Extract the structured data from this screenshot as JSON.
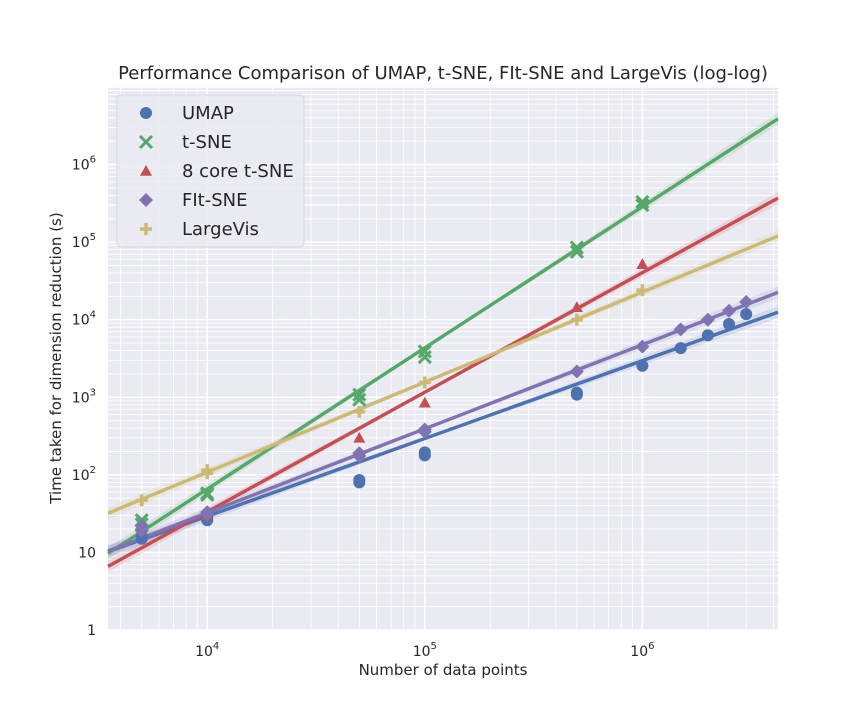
{
  "chart_data": {
    "type": "scatter",
    "title": "Performance Comparison of UMAP, t-SNE, FIt-SNE and LargeVis (log-log)",
    "xlabel": "Number of data points",
    "ylabel": "Time taken for dimension reduction (s)",
    "xscale": "log",
    "yscale": "log",
    "xlim": [
      3500,
      4200000
    ],
    "ylim": [
      1,
      10000000
    ],
    "grid": true,
    "legend_position": "top-left",
    "x_ticks": [
      {
        "value": 10000,
        "base": "10",
        "exp": "4"
      },
      {
        "value": 100000,
        "base": "10",
        "exp": "5"
      },
      {
        "value": 1000000,
        "base": "10",
        "exp": "6"
      }
    ],
    "y_ticks": [
      {
        "value": 1,
        "base": "1",
        "exp": ""
      },
      {
        "value": 10,
        "base": "10",
        "exp": ""
      },
      {
        "value": 100,
        "base": "10",
        "exp": "2"
      },
      {
        "value": 1000,
        "base": "10",
        "exp": "3"
      },
      {
        "value": 10000,
        "base": "10",
        "exp": "4"
      },
      {
        "value": 100000,
        "base": "10",
        "exp": "5"
      },
      {
        "value": 1000000,
        "base": "10",
        "exp": "6"
      }
    ],
    "series": [
      {
        "name": "UMAP",
        "color": "#4c72b0",
        "marker": "circle",
        "points": [
          [
            5000,
            15
          ],
          [
            5000,
            16
          ],
          [
            10000,
            26
          ],
          [
            10000,
            28
          ],
          [
            50000,
            80
          ],
          [
            50000,
            86
          ],
          [
            100000,
            178
          ],
          [
            100000,
            195
          ],
          [
            500000,
            1080
          ],
          [
            500000,
            1150
          ],
          [
            1000000,
            2550
          ],
          [
            1500000,
            4300
          ],
          [
            2000000,
            6300
          ],
          [
            2500000,
            8800
          ],
          [
            3000000,
            11800
          ]
        ],
        "fit": {
          "x0": 3500,
          "y0": 10.2,
          "x1": 4200000,
          "y1": 12500
        }
      },
      {
        "name": "t-SNE",
        "color": "#55a868",
        "marker": "x",
        "points": [
          [
            5000,
            23
          ],
          [
            5000,
            26
          ],
          [
            10000,
            55
          ],
          [
            10000,
            58
          ],
          [
            50000,
            930
          ],
          [
            50000,
            1080
          ],
          [
            100000,
            3300
          ],
          [
            100000,
            3900
          ],
          [
            500000,
            75000
          ],
          [
            500000,
            85000
          ],
          [
            1000000,
            300000
          ],
          [
            1000000,
            330000
          ]
        ],
        "fit": {
          "x0": 3500,
          "y0": 9.7,
          "x1": 4200000,
          "y1": 3900000
        }
      },
      {
        "name": "8 core t-SNE",
        "color": "#c44e52",
        "marker": "triangle",
        "points": [
          [
            5000,
            22
          ],
          [
            10000,
            30
          ],
          [
            50000,
            300
          ],
          [
            100000,
            850
          ],
          [
            500000,
            14500
          ],
          [
            1000000,
            52000
          ]
        ],
        "fit": {
          "x0": 3500,
          "y0": 6.6,
          "x1": 4200000,
          "y1": 370000
        }
      },
      {
        "name": "FIt-SNE",
        "color": "#8172b2",
        "marker": "diamond",
        "points": [
          [
            5000,
            19
          ],
          [
            5000,
            22
          ],
          [
            10000,
            31
          ],
          [
            10000,
            33
          ],
          [
            50000,
            175
          ],
          [
            50000,
            190
          ],
          [
            100000,
            360
          ],
          [
            100000,
            385
          ],
          [
            500000,
            2150
          ],
          [
            1000000,
            4500
          ],
          [
            1500000,
            7500
          ],
          [
            2000000,
            10000
          ],
          [
            2500000,
            13000
          ],
          [
            3000000,
            17000
          ]
        ],
        "fit": {
          "x0": 3500,
          "y0": 10.4,
          "x1": 4200000,
          "y1": 22500
        }
      },
      {
        "name": "LargeVis",
        "color": "#ccb974",
        "marker": "plus",
        "points": [
          [
            5000,
            47
          ],
          [
            10000,
            105
          ],
          [
            10000,
            115
          ],
          [
            50000,
            650
          ],
          [
            100000,
            1550
          ],
          [
            500000,
            10000
          ],
          [
            1000000,
            24000
          ]
        ],
        "fit": {
          "x0": 3500,
          "y0": 32,
          "x1": 4200000,
          "y1": 120000
        }
      }
    ]
  }
}
